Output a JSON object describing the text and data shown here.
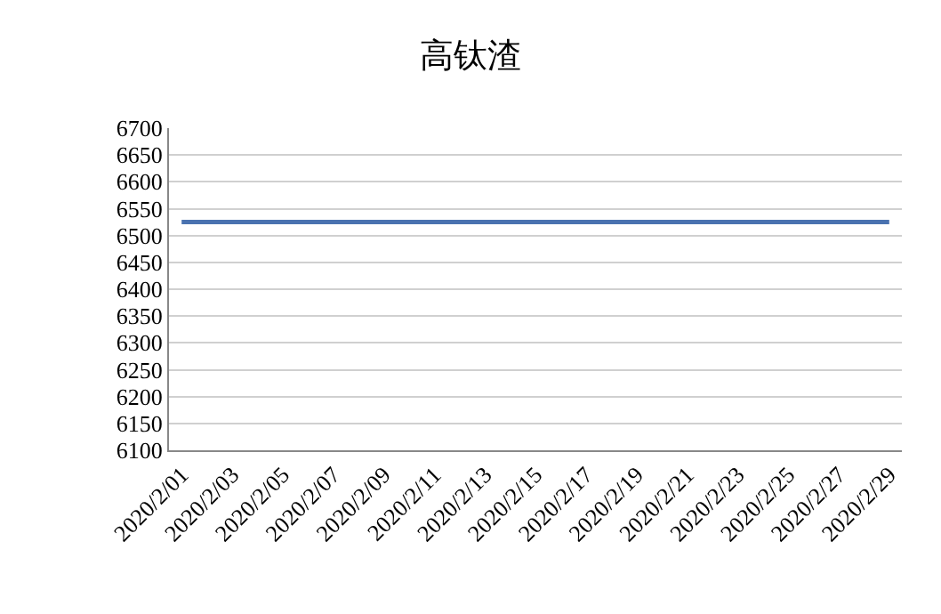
{
  "chart_data": {
    "type": "line",
    "title": "高钛渣",
    "categories": [
      "2020/2/01",
      null,
      "2020/2/03",
      null,
      "2020/2/05",
      null,
      "2020/2/07",
      null,
      "2020/2/09",
      null,
      "2020/2/11",
      null,
      "2020/2/13",
      null,
      "2020/2/15",
      null,
      "2020/2/17",
      null,
      "2020/2/19",
      null,
      "2020/2/21",
      null,
      "2020/2/23",
      null,
      "2020/2/25",
      null,
      "2020/2/27",
      null,
      "2020/2/29"
    ],
    "series": [
      {
        "color": "#4a72b0",
        "values": [
          6525,
          6525,
          6525,
          6525,
          6525,
          6525,
          6525,
          6525,
          6525,
          6525,
          6525,
          6525,
          6525,
          6525,
          6525,
          6525,
          6525,
          6525,
          6525,
          6525,
          6525,
          6525,
          6525,
          6525,
          6525,
          6525,
          6525,
          6525,
          6525
        ]
      }
    ],
    "ylim": [
      6100,
      6700
    ],
    "yticks": [
      6100,
      6150,
      6200,
      6250,
      6300,
      6350,
      6400,
      6450,
      6500,
      6550,
      6600,
      6650,
      6700
    ],
    "grid": "y",
    "legend": false,
    "marker": "none",
    "line_style": "solid"
  }
}
